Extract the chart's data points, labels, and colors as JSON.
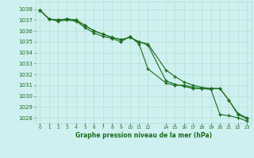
{
  "title": "Graphe pression niveau de la mer (hPa)",
  "bg_color": "#cff0f0",
  "grid_color": "#aaddcc",
  "line_color": "#1a6b1a",
  "text_color": "#1a6b1a",
  "xlim": [
    -0.5,
    23.5
  ],
  "ylim": [
    1027.5,
    1038.7
  ],
  "yticks": [
    1028,
    1029,
    1030,
    1031,
    1032,
    1033,
    1034,
    1035,
    1036,
    1037,
    1038
  ],
  "xtick_vals": [
    0,
    1,
    2,
    3,
    4,
    5,
    6,
    7,
    8,
    9,
    10,
    11,
    12,
    14,
    15,
    16,
    17,
    18,
    19,
    20,
    21,
    22,
    23
  ],
  "xtick_labels": [
    "0",
    "1",
    "2",
    "3",
    "4",
    "5",
    "6",
    "7",
    "8",
    "9",
    "10",
    "11",
    "12",
    "14",
    "15",
    "16",
    "17",
    "18",
    "19",
    "20",
    "21",
    "22",
    "23"
  ],
  "line1_x": [
    0,
    1,
    2,
    3,
    4,
    5,
    6,
    7,
    8,
    9,
    10,
    11,
    12,
    14,
    15,
    16,
    17,
    18,
    19,
    20,
    21,
    22,
    23
  ],
  "line1_y": [
    1037.9,
    1037.1,
    1036.9,
    1037.0,
    1036.9,
    1036.3,
    1035.8,
    1035.5,
    1035.3,
    1035.0,
    1035.5,
    1034.8,
    1032.5,
    1031.2,
    1031.0,
    1031.0,
    1030.8,
    1030.7,
    1030.6,
    1028.3,
    1028.2,
    1028.0,
    1027.7
  ],
  "line2_x": [
    0,
    1,
    2,
    3,
    4,
    5,
    6,
    7,
    8,
    9,
    10,
    11,
    12,
    14,
    15,
    16,
    17,
    18,
    19,
    20,
    21,
    22,
    23
  ],
  "line2_y": [
    1037.9,
    1037.1,
    1037.0,
    1037.1,
    1037.0,
    1036.5,
    1036.0,
    1035.7,
    1035.4,
    1035.2,
    1035.4,
    1035.0,
    1034.7,
    1031.4,
    1031.1,
    1030.9,
    1030.7,
    1030.7,
    1030.7,
    1030.7,
    1029.6,
    1028.3,
    1027.9
  ],
  "line3_x": [
    0,
    1,
    2,
    3,
    4,
    5,
    6,
    7,
    8,
    9,
    10,
    11,
    12,
    14,
    15,
    16,
    17,
    18,
    19,
    20,
    21,
    22,
    23
  ],
  "line3_y": [
    1037.9,
    1037.1,
    1037.0,
    1037.1,
    1037.0,
    1036.5,
    1036.0,
    1035.7,
    1035.4,
    1035.2,
    1035.4,
    1035.0,
    1034.8,
    1032.4,
    1031.8,
    1031.3,
    1031.0,
    1030.8,
    1030.7,
    1030.7,
    1029.6,
    1028.4,
    1028.0
  ]
}
